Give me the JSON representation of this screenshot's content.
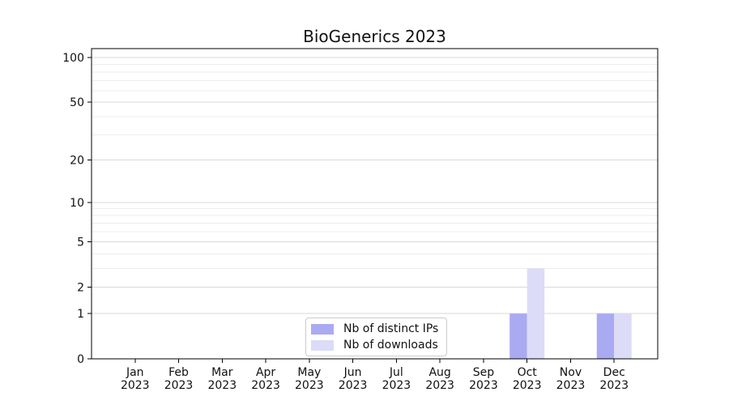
{
  "chart_data": {
    "type": "bar",
    "title": "BioGenerics 2023",
    "categories": [
      "Jan",
      "Feb",
      "Mar",
      "Apr",
      "May",
      "Jun",
      "Jul",
      "Aug",
      "Sep",
      "Oct",
      "Nov",
      "Dec"
    ],
    "category_year": "2023",
    "series": [
      {
        "name": "Nb of distinct IPs",
        "color": "#aaaaf2",
        "values": [
          0,
          0,
          0,
          0,
          0,
          0,
          0,
          0,
          0,
          1,
          0,
          1
        ]
      },
      {
        "name": "Nb of downloads",
        "color": "#dcdcf8",
        "values": [
          0,
          0,
          0,
          0,
          0,
          0,
          0,
          0,
          0,
          3,
          0,
          1
        ]
      }
    ],
    "yscale": "log1p",
    "ylim": [
      0,
      115
    ],
    "yticks": [
      0,
      1,
      2,
      5,
      10,
      20,
      50,
      100
    ],
    "yticks_minor": [
      3,
      4,
      6,
      7,
      8,
      9,
      30,
      40,
      60,
      70,
      80,
      90
    ],
    "grid": true,
    "grid_color_major": "#d9d9d9",
    "grid_color_minor": "#ededed",
    "axis_color": "#000000",
    "text_color": "#111111",
    "legend_position": "lower center"
  }
}
